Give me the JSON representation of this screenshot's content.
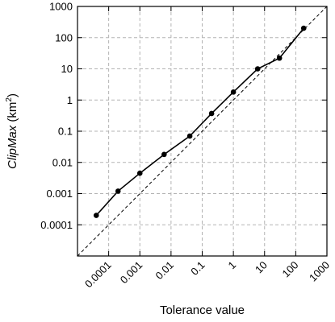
{
  "chart_data": {
    "type": "line",
    "title": "",
    "xlabel": "Tolerance value",
    "ylabel": {
      "prefix": "ClipMax",
      "unit_open": " (km",
      "unit_exp": "2",
      "unit_close": ")"
    },
    "xscale": "log",
    "yscale": "log",
    "xlim": [
      1e-05,
      1000
    ],
    "ylim": [
      1e-05,
      1000
    ],
    "grid": true,
    "legend": "none",
    "xticks": [
      {
        "value": 0.0001,
        "label": "0.0001"
      },
      {
        "value": 0.001,
        "label": "0.001"
      },
      {
        "value": 0.01,
        "label": "0.01"
      },
      {
        "value": 0.1,
        "label": "0.1"
      },
      {
        "value": 1,
        "label": "1"
      },
      {
        "value": 10,
        "label": "10"
      },
      {
        "value": 100,
        "label": "100"
      },
      {
        "value": 1000,
        "label": "1000"
      }
    ],
    "yticks": [
      {
        "value": 0.0001,
        "label": "0.0001"
      },
      {
        "value": 0.001,
        "label": "0.001"
      },
      {
        "value": 0.01,
        "label": "0.01"
      },
      {
        "value": 0.1,
        "label": "0.1"
      },
      {
        "value": 1,
        "label": "1"
      },
      {
        "value": 10,
        "label": "10"
      },
      {
        "value": 100,
        "label": "100"
      },
      {
        "value": 1000,
        "label": "1000"
      }
    ],
    "series": [
      {
        "style": "solid-with-markers",
        "color": "#000000",
        "x": [
          4e-05,
          0.0002,
          0.001,
          0.006,
          0.04,
          0.2,
          1,
          6,
          30,
          180
        ],
        "y": [
          0.0002,
          0.0012,
          0.0045,
          0.018,
          0.07,
          0.37,
          1.8,
          10,
          22,
          200
        ]
      },
      {
        "style": "dashed",
        "color": "#000000",
        "x": [
          1e-05,
          1000
        ],
        "y": [
          1e-05,
          1000
        ]
      }
    ]
  }
}
